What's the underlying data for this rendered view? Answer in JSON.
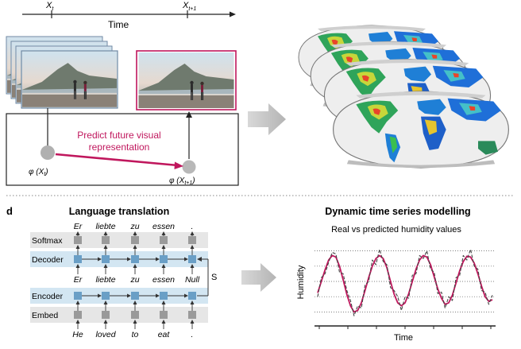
{
  "top": {
    "timeline": {
      "label": "Time",
      "x_t": "X",
      "x_t_sub": "t",
      "x_t1": "X",
      "x_t1_sub": "t+1"
    },
    "predict_text_line1": "Predict future visual",
    "predict_text_line2": "representation",
    "phi_t": "φ (X",
    "phi_t_sub": "t",
    "phi_t1": "φ (X",
    "phi_t1_sub": "t+1",
    "accent_color": "#c0175d"
  },
  "panel_d": {
    "letter": "d",
    "language": {
      "title": "Language translation",
      "rows": [
        "Softmax",
        "Decoder",
        "Encoder",
        "Embed"
      ],
      "output_words": [
        "Er",
        "liebte",
        "zu",
        "essen",
        "."
      ],
      "decoder_inputs": [
        "Er",
        "liebte",
        "zu",
        "essen",
        "Null"
      ],
      "input_words": [
        "He",
        "loved",
        "to",
        "eat",
        "."
      ],
      "state_label": "S"
    },
    "timeseries": {
      "title": "Dynamic time series modelling",
      "subtitle": "Real vs predicted humidity values",
      "ylabel": "Humidity",
      "xlabel": "Time"
    }
  },
  "chart_data": {
    "type": "line",
    "title": "Real vs predicted humidity values",
    "xlabel": "Time",
    "ylabel": "Humidity",
    "x": [
      0,
      1,
      2,
      3,
      4,
      5,
      6,
      7,
      8,
      9,
      10,
      11,
      12,
      13,
      14,
      15,
      16,
      17,
      18,
      19,
      20,
      21,
      22,
      23,
      24,
      25,
      26,
      27,
      28,
      29,
      30,
      31,
      32,
      33,
      34,
      35,
      36,
      37,
      38,
      39,
      40,
      41,
      42,
      43,
      44,
      45,
      46,
      47,
      48
    ],
    "ylim": [
      0,
      1
    ],
    "grid": "horizontal dotted",
    "series": [
      {
        "values": [
          0.35,
          0.5,
          0.65,
          0.78,
          0.84,
          0.82,
          0.7,
          0.52,
          0.33,
          0.18,
          0.1,
          0.12,
          0.22,
          0.38,
          0.55,
          0.7,
          0.8,
          0.84,
          0.8,
          0.68,
          0.5,
          0.33,
          0.22,
          0.18,
          0.22,
          0.34,
          0.5,
          0.66,
          0.78,
          0.84,
          0.82,
          0.72,
          0.56,
          0.4,
          0.28,
          0.2,
          0.22,
          0.32,
          0.48,
          0.64,
          0.76,
          0.83,
          0.82,
          0.74,
          0.6,
          0.44,
          0.3,
          0.24,
          0.26
        ],
        "color": "#c0175d",
        "style": "solid"
      },
      {
        "values": [
          0.3,
          0.55,
          0.6,
          0.75,
          0.88,
          0.86,
          0.62,
          0.6,
          0.38,
          0.25,
          0.05,
          0.18,
          0.15,
          0.45,
          0.5,
          0.78,
          0.72,
          0.92,
          0.76,
          0.72,
          0.42,
          0.38,
          0.3,
          0.12,
          0.3,
          0.28,
          0.58,
          0.6,
          0.84,
          0.8,
          0.9,
          0.66,
          0.62,
          0.34,
          0.36,
          0.15,
          0.3,
          0.25,
          0.55,
          0.58,
          0.84,
          0.78,
          0.92,
          0.7,
          0.66,
          0.38,
          0.36,
          0.2,
          0.32
        ],
        "color": "#444444",
        "style": "dashed"
      }
    ]
  }
}
